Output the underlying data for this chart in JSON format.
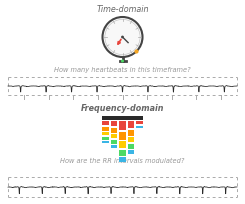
{
  "title_top": "Time-domain",
  "title_bottom": "Frequency-domain",
  "question_top": "How many heartbeats in this timeframe?",
  "question_bottom": "How are the RR intervals modulated?",
  "bg_color": "#ffffff",
  "bar_colors_rows": [
    "#e8453c",
    "#ff9500",
    "#ffcc00",
    "#4cd964",
    "#3ab5e5"
  ],
  "bar_base_color": "#2a2a2a",
  "ecg_color": "#2a2a2a",
  "dashed_line_color": "#aaaaaa",
  "title_fontsize": 5.8,
  "question_fontsize": 4.8,
  "title_color": "#666666",
  "question_color": "#999999",
  "clock_face_color": "#f8f8f8",
  "clock_edge_color": "#444444",
  "clock_hand_red": "#e8453c",
  "clock_hand_dark": "#444444",
  "clock_crown_color": "#444444",
  "clock_green_top": "#4cd964",
  "clock_yellow_dot": "#f5a623"
}
